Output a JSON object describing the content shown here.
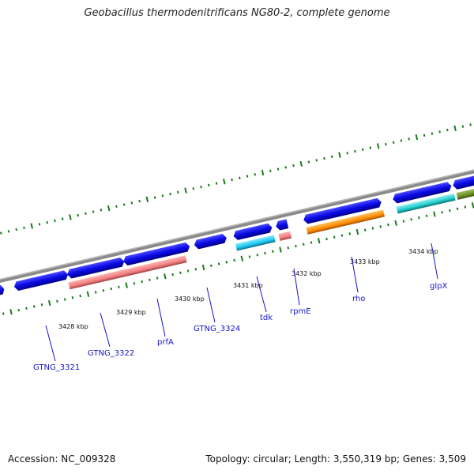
{
  "title": "Geobacillus thermodenitrificans NG80-2, complete genome",
  "footer": {
    "accession": "Accession: NC_009328",
    "summary": "Topology: circular; Length: 3,550,319 bp; Genes: 3,509"
  },
  "colors": {
    "backbone": "#888888",
    "cds_blue": "#0a0ae6",
    "rna_pink": "#f08080",
    "tdk_cyan": "#1ec8f0",
    "rho_orange": "#ff8c00",
    "glpx_teal": "#20cccc",
    "olive": "#6b8e23",
    "tick_green": "#1a7a1a",
    "label_blue": "#1515c8"
  },
  "kbp_ticks": [
    "3428 kbp",
    "3429 kbp",
    "3430 kbp",
    "3431 kbp",
    "3432 kbp",
    "3433 kbp",
    "3434 kbp"
  ],
  "gene_labels": [
    "GTNG_3321",
    "GTNG_3322",
    "prfA",
    "GTNG_3324",
    "tdk",
    "rpmE",
    "rho",
    "glpX"
  ]
}
